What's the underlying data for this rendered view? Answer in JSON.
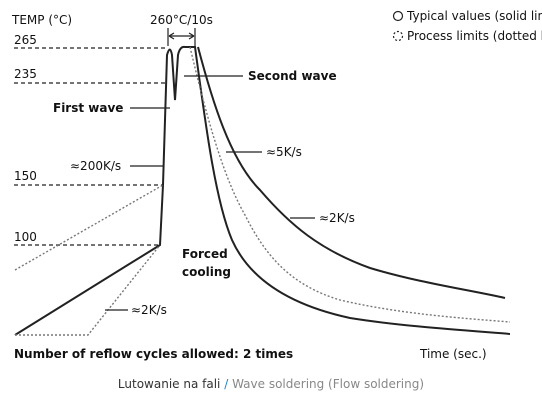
{
  "diagram": {
    "y_axis_label": "TEMP (°C)",
    "levels": [
      265,
      235,
      150,
      100
    ],
    "peak_label": "260°C/10s",
    "legend": [
      "Typical values (solid line)",
      "Process limits (dotted line)"
    ],
    "annotations": {
      "second_wave": "Second wave",
      "first_wave": "First wave",
      "heating_rate": "≈200K/s",
      "cooling_fast": "≈5K/s",
      "cooling_slow": "≈2K/s",
      "preheat_rate": "≈2K/s",
      "forced_cooling": [
        "Forced",
        "cooling"
      ]
    },
    "footnote": "Number of reflow cycles allowed: 2 times",
    "x_axis_label": "Time (sec.)"
  },
  "caption": {
    "primary": "Lutowanie na fali",
    "separator": "/",
    "secondary": "Wave soldering (Flow soldering)"
  }
}
